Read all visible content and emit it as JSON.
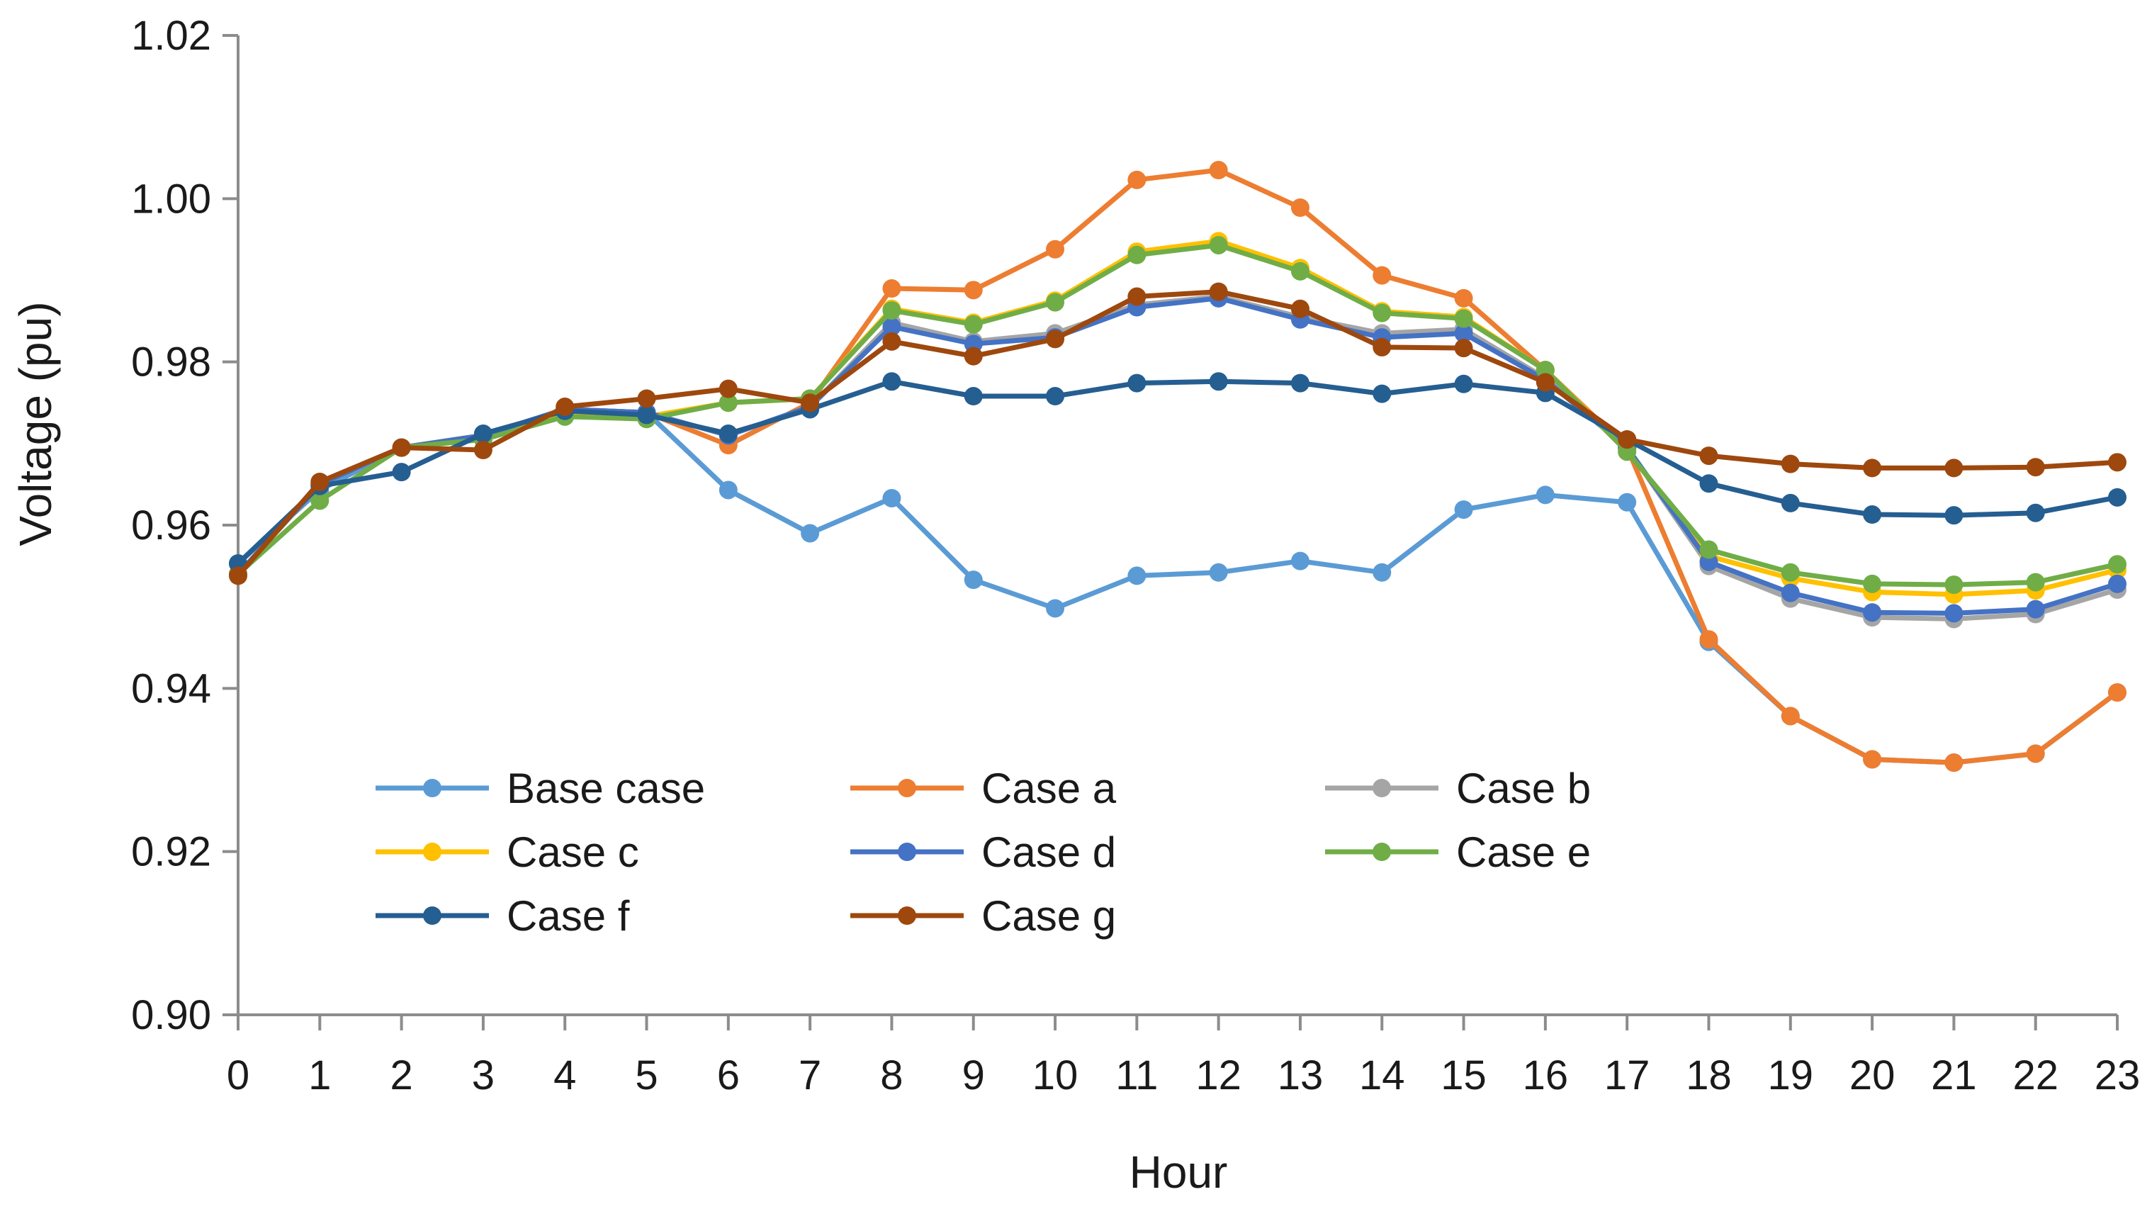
{
  "chart_data": {
    "type": "line",
    "title": "",
    "xlabel": "Hour",
    "ylabel": "Voltage (pu)",
    "ylim": [
      0.9,
      1.02
    ],
    "yticks": [
      "0.90",
      "0.92",
      "0.94",
      "0.96",
      "0.98",
      "1.00",
      "1.02"
    ],
    "x": [
      0,
      1,
      2,
      3,
      4,
      5,
      6,
      7,
      8,
      9,
      10,
      11,
      12,
      13,
      14,
      15,
      16,
      17,
      18,
      19,
      20,
      21,
      22,
      23
    ],
    "grid": false,
    "legend_position": "lower-center, inside plot, 3 columns",
    "series": [
      {
        "name": "Base case",
        "color": "#5B9BD5",
        "values": [
          0.9553,
          0.9643,
          0.9695,
          0.971,
          0.9742,
          0.9738,
          0.9643,
          0.959,
          0.9633,
          0.9533,
          0.9498,
          0.9538,
          0.9542,
          0.9556,
          0.9542,
          0.9619,
          0.9637,
          0.9628,
          0.9457,
          0.9366,
          0.9313,
          0.9309,
          0.932,
          0.9395
        ]
      },
      {
        "name": "Case a",
        "color": "#ED7D31",
        "values": [
          0.954,
          0.965,
          0.9695,
          0.971,
          0.9742,
          0.9738,
          0.9698,
          0.975,
          0.989,
          0.9888,
          0.9938,
          1.0023,
          1.0035,
          0.9989,
          0.9906,
          0.9878,
          0.979,
          0.9695,
          0.946,
          0.9366,
          0.9313,
          0.9309,
          0.932,
          0.9395
        ]
      },
      {
        "name": "Case b",
        "color": "#A5A5A5",
        "values": [
          0.954,
          0.965,
          0.9695,
          0.971,
          0.9742,
          0.9738,
          0.971,
          0.9745,
          0.9848,
          0.9825,
          0.9835,
          0.987,
          0.988,
          0.9855,
          0.9835,
          0.984,
          0.978,
          0.9695,
          0.955,
          0.951,
          0.9487,
          0.9485,
          0.9491,
          0.9521
        ]
      },
      {
        "name": "Case c",
        "color": "#FFC000",
        "values": [
          0.954,
          0.965,
          0.9695,
          0.971,
          0.9735,
          0.9733,
          0.975,
          0.9755,
          0.9865,
          0.9848,
          0.9875,
          0.9935,
          0.9948,
          0.9915,
          0.9862,
          0.9855,
          0.979,
          0.9692,
          0.9562,
          0.9535,
          0.9518,
          0.9515,
          0.952,
          0.9545
        ]
      },
      {
        "name": "Case d",
        "color": "#4472C4",
        "values": [
          0.954,
          0.965,
          0.9695,
          0.971,
          0.9742,
          0.9738,
          0.971,
          0.9745,
          0.9843,
          0.9822,
          0.983,
          0.9867,
          0.9878,
          0.9852,
          0.983,
          0.9835,
          0.9778,
          0.9695,
          0.9555,
          0.9517,
          0.9493,
          0.9492,
          0.9497,
          0.9528
        ]
      },
      {
        "name": "Case e",
        "color": "#70AD47",
        "values": [
          0.954,
          0.963,
          0.9695,
          0.9705,
          0.9733,
          0.973,
          0.975,
          0.9755,
          0.9863,
          0.9846,
          0.9873,
          0.9931,
          0.9943,
          0.9911,
          0.986,
          0.9853,
          0.979,
          0.969,
          0.957,
          0.9542,
          0.9528,
          0.9527,
          0.953,
          0.9552
        ]
      },
      {
        "name": "Case f",
        "color": "#255E91",
        "values": [
          0.9553,
          0.9648,
          0.9665,
          0.9712,
          0.974,
          0.9735,
          0.9712,
          0.9742,
          0.9776,
          0.9758,
          0.9758,
          0.9774,
          0.9776,
          0.9774,
          0.9761,
          0.9773,
          0.9762,
          0.9705,
          0.9651,
          0.9627,
          0.9613,
          0.9612,
          0.9615,
          0.9634
        ]
      },
      {
        "name": "Case g",
        "color": "#9E480E",
        "values": [
          0.9538,
          0.9653,
          0.9695,
          0.9692,
          0.9745,
          0.9755,
          0.9767,
          0.975,
          0.9825,
          0.9807,
          0.9828,
          0.988,
          0.9886,
          0.9865,
          0.9818,
          0.9817,
          0.9775,
          0.9705,
          0.9685,
          0.9675,
          0.967,
          0.967,
          0.9671,
          0.9677
        ]
      }
    ]
  }
}
